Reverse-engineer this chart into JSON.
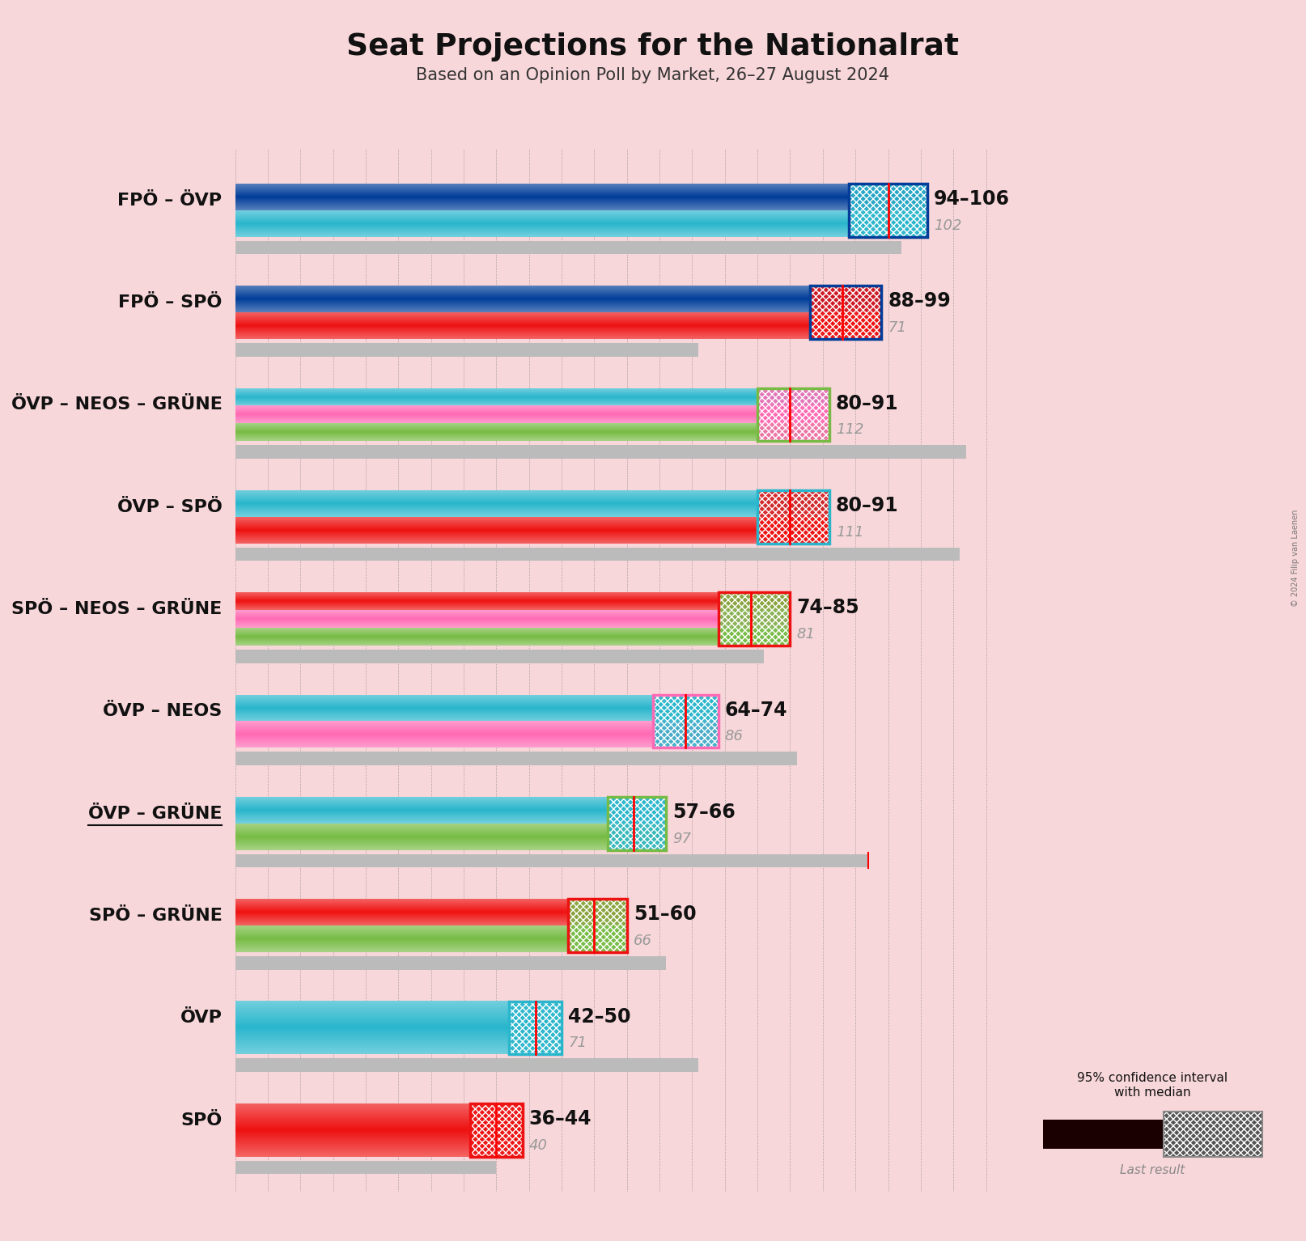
{
  "title": "Seat Projections for the Nationalrat",
  "subtitle": "Based on an Opinion Poll by Market, 26–27 August 2024",
  "bg_color": "#f8d7da",
  "xlim": [
    0,
    120
  ],
  "tick_interval": 5,
  "copyright": "© 2024 Filip van Laenen",
  "coalitions": [
    {
      "label": "FPÖ – ÖVP",
      "underline": false,
      "ci_low": 94,
      "ci_high": 106,
      "median": 100,
      "last_result": 102,
      "has_red_line": false,
      "range_label": "94–106",
      "last_label": "102",
      "parties": [
        "FPÖ",
        "ÖVP"
      ],
      "bar_colors": [
        "#003d99",
        "#29b6cc"
      ],
      "ci_border_color": "#003d99",
      "ci_fill_color": "#29b6cc",
      "ci_hatch": "xxx"
    },
    {
      "label": "FPÖ – SPÖ",
      "underline": false,
      "ci_low": 88,
      "ci_high": 99,
      "median": 93,
      "last_result": 71,
      "has_red_line": false,
      "range_label": "88–99",
      "last_label": "71",
      "parties": [
        "FPÖ",
        "SPÖ"
      ],
      "bar_colors": [
        "#003d99",
        "#ee1111"
      ],
      "ci_border_color": "#003d99",
      "ci_fill_color": "#ee1111",
      "ci_hatch": "xxx"
    },
    {
      "label": "ÖVP – NEOS – GRÜNE",
      "underline": false,
      "ci_low": 80,
      "ci_high": 91,
      "median": 85,
      "last_result": 112,
      "has_red_line": false,
      "range_label": "80–91",
      "last_label": "112",
      "parties": [
        "ÖVP",
        "NEOS",
        "GRÜNE"
      ],
      "bar_colors": [
        "#29b6cc",
        "#ff69b4",
        "#77bb44"
      ],
      "ci_border_color": "#77bb44",
      "ci_fill_color": "#ff69b4",
      "ci_hatch": "xxx"
    },
    {
      "label": "ÖVP – SPÖ",
      "underline": false,
      "ci_low": 80,
      "ci_high": 91,
      "median": 85,
      "last_result": 111,
      "has_red_line": false,
      "range_label": "80–91",
      "last_label": "111",
      "parties": [
        "ÖVP",
        "SPÖ"
      ],
      "bar_colors": [
        "#29b6cc",
        "#ee1111"
      ],
      "ci_border_color": "#29b6cc",
      "ci_fill_color": "#ee1111",
      "ci_hatch": "xxx"
    },
    {
      "label": "SPÖ – NEOS – GRÜNE",
      "underline": false,
      "ci_low": 74,
      "ci_high": 85,
      "median": 79,
      "last_result": 81,
      "has_red_line": false,
      "range_label": "74–85",
      "last_label": "81",
      "parties": [
        "SPÖ",
        "NEOS",
        "GRÜNE"
      ],
      "bar_colors": [
        "#ee1111",
        "#ff69b4",
        "#77bb44"
      ],
      "ci_border_color": "#ee1111",
      "ci_fill_color": "#77bb44",
      "ci_hatch": "xxx"
    },
    {
      "label": "ÖVP – NEOS",
      "underline": false,
      "ci_low": 64,
      "ci_high": 74,
      "median": 69,
      "last_result": 86,
      "has_red_line": false,
      "range_label": "64–74",
      "last_label": "86",
      "parties": [
        "ÖVP",
        "NEOS"
      ],
      "bar_colors": [
        "#29b6cc",
        "#ff69b4"
      ],
      "ci_border_color": "#ff69b4",
      "ci_fill_color": "#29b6cc",
      "ci_hatch": "xxx"
    },
    {
      "label": "ÖVP – GRÜNE",
      "underline": true,
      "ci_low": 57,
      "ci_high": 66,
      "median": 61,
      "last_result": 97,
      "has_red_line": true,
      "range_label": "57–66",
      "last_label": "97",
      "parties": [
        "ÖVP",
        "GRÜNE"
      ],
      "bar_colors": [
        "#29b6cc",
        "#77bb44"
      ],
      "ci_border_color": "#77bb44",
      "ci_fill_color": "#29b6cc",
      "ci_hatch": "xxx"
    },
    {
      "label": "SPÖ – GRÜNE",
      "underline": false,
      "ci_low": 51,
      "ci_high": 60,
      "median": 55,
      "last_result": 66,
      "has_red_line": false,
      "range_label": "51–60",
      "last_label": "66",
      "parties": [
        "SPÖ",
        "GRÜNE"
      ],
      "bar_colors": [
        "#ee1111",
        "#77bb44"
      ],
      "ci_border_color": "#ee1111",
      "ci_fill_color": "#77bb44",
      "ci_hatch": "xxx"
    },
    {
      "label": "ÖVP",
      "underline": false,
      "ci_low": 42,
      "ci_high": 50,
      "median": 46,
      "last_result": 71,
      "has_red_line": false,
      "range_label": "42–50",
      "last_label": "71",
      "parties": [
        "ÖVP"
      ],
      "bar_colors": [
        "#29b6cc"
      ],
      "ci_border_color": "#29b6cc",
      "ci_fill_color": "#29b6cc",
      "ci_hatch": "xxx"
    },
    {
      "label": "SPÖ",
      "underline": false,
      "ci_low": 36,
      "ci_high": 44,
      "median": 40,
      "last_result": 40,
      "has_red_line": false,
      "range_label": "36–44",
      "last_label": "40",
      "parties": [
        "SPÖ"
      ],
      "bar_colors": [
        "#ee1111"
      ],
      "ci_border_color": "#ee1111",
      "ci_fill_color": "#ee1111",
      "ci_hatch": "xxx"
    }
  ]
}
